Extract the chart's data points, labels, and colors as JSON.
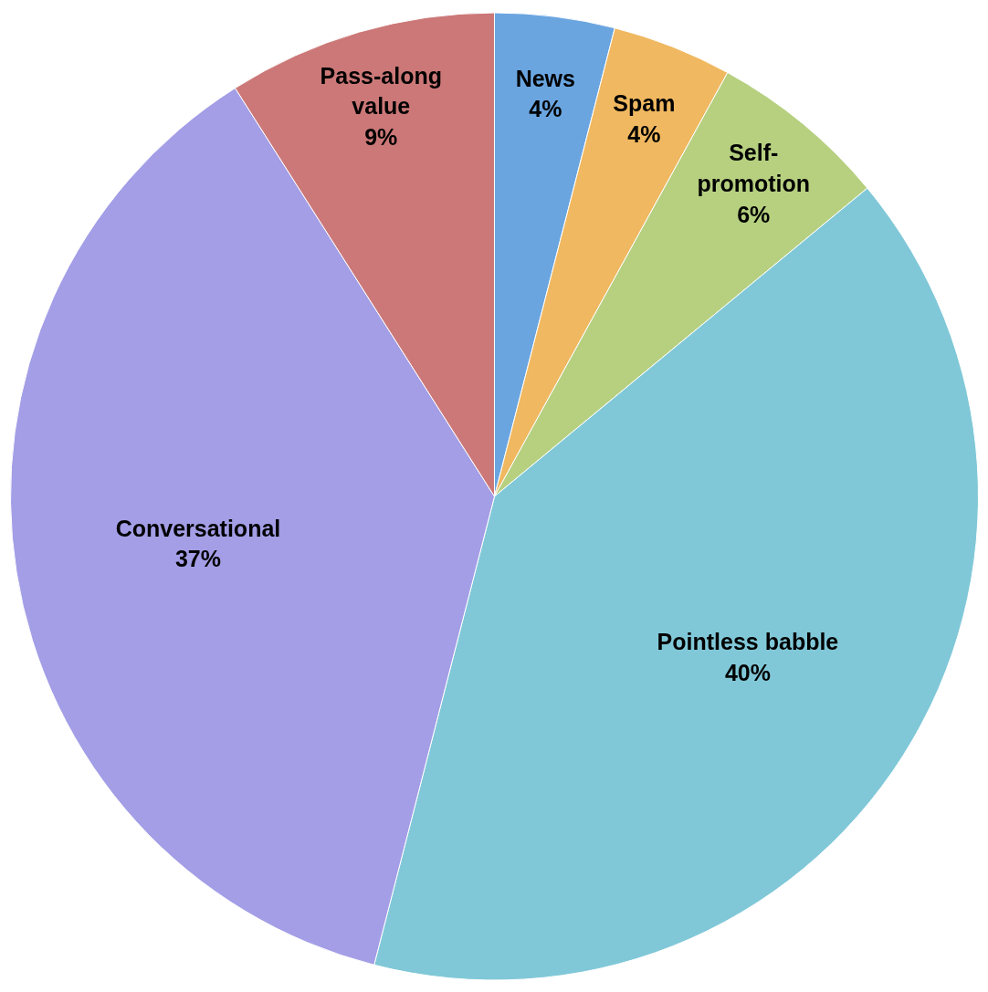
{
  "chart_data": {
    "type": "pie",
    "categories": [
      "News",
      "Spam",
      "Self-promotion",
      "Pointless babble",
      "Conversational",
      "Pass-along value"
    ],
    "values": [
      4,
      4,
      6,
      40,
      37,
      9
    ],
    "value_labels": [
      "4%",
      "4%",
      "6%",
      "40%",
      "37%",
      "9%"
    ],
    "colors": [
      "#6aa5e0",
      "#f0b860",
      "#b6d080",
      "#80c8d8",
      "#a39ee6",
      "#cc7878"
    ]
  }
}
